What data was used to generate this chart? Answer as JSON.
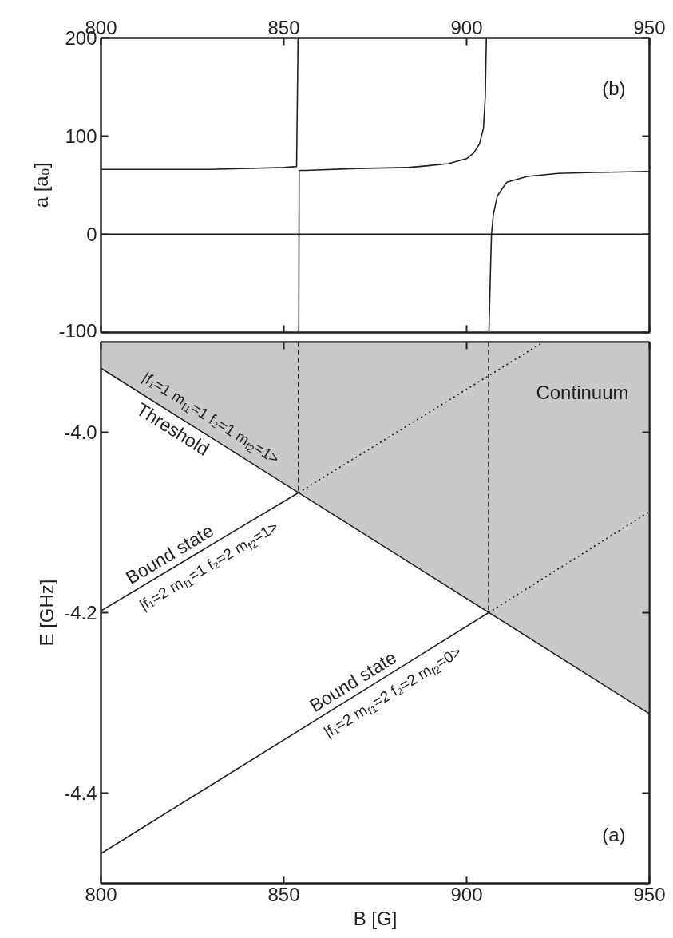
{
  "chart_data": [
    {
      "type": "line",
      "ylabel": "a [a₀]",
      "xlim": [
        800,
        950
      ],
      "xticks": [
        800,
        850,
        900,
        950
      ],
      "ylim": [
        -100,
        200
      ],
      "yticks": [
        -100,
        0,
        100,
        200
      ],
      "series": [
        {
          "color": "#231f20",
          "x": [
            800,
            830,
            850,
            853.5,
            853.9,
            854.0,
            854.1,
            854.2,
            856,
            870,
            884,
            890,
            895,
            900,
            902,
            903.5,
            904.6,
            905.1,
            905.4,
            905.7,
            906.1,
            906.5,
            906.8,
            907.3,
            908.4,
            910,
            911,
            916.6,
            925,
            935,
            950
          ],
          "values": [
            66,
            66,
            68,
            69,
            200,
            null,
            -100,
            65,
            65,
            67,
            68,
            70,
            72,
            77,
            83,
            92,
            108,
            140,
            200,
            null,
            -100,
            -40,
            0,
            20,
            39,
            48,
            53,
            59,
            62,
            63,
            64
          ]
        }
      ],
      "ref_lines": [
        {
          "axis": "y",
          "value": 0,
          "color": "#231f20"
        }
      ],
      "annotations": [
        "(b)"
      ]
    },
    {
      "type": "line",
      "xlabel": "B [G]",
      "ylabel": "E [GHz]",
      "xlim": [
        800,
        950
      ],
      "xticks": [
        800,
        850,
        900,
        950
      ],
      "ylim": [
        -4.5,
        -3.9
      ],
      "yticks": [
        -4.4,
        -4.2,
        {
          "value": -4.0,
          "label": "-4.0"
        }
      ],
      "series": [
        {
          "type": "area",
          "color": "#231f20",
          "x": [
            800,
            950
          ],
          "values": [
            -3.929,
            -4.312
          ]
        },
        {
          "color": "#231f20",
          "x": [
            800,
            854
          ],
          "values": [
            -4.198,
            -4.067
          ]
        },
        {
          "color": "#231f20",
          "x": [
            854,
            921
          ],
          "values": [
            -4.067,
            -3.9
          ],
          "line_style": "dotted"
        },
        {
          "color": "#231f20",
          "x": [
            800,
            906
          ],
          "values": [
            -4.467,
            -4.2
          ]
        },
        {
          "color": "#231f20",
          "x": [
            906,
            950
          ],
          "values": [
            -4.2,
            -4.088
          ],
          "line_style": "dotted"
        },
        {
          "color": "#231f20",
          "x": [
            854,
            854
          ],
          "values": [
            -3.9,
            -4.067
          ],
          "line_style": "dashed"
        },
        {
          "color": "#231f20",
          "x": [
            906,
            906
          ],
          "values": [
            -3.9,
            -4.2
          ],
          "line_style": "dashed"
        }
      ],
      "annotations": [
        "Continuum",
        "(a)",
        {
          "text": "|f₁=1 m$_{f1}$=1 f₂=1 m$_{f2}$=1>",
          "x": 827.6,
          "y": -4.0
        },
        {
          "text": "Threshold",
          "x": 821.6,
          "y": -3.984
        },
        {
          "text": "Bound state",
          "x": 820.5,
          "y": -4.148
        },
        {
          "text": "|f₁=2 m$_{f1}$=1 f₂=2 m$_{f2}$=1>",
          "x": 827.1,
          "y": -4.132
        },
        {
          "text": "Bound state",
          "x": 870.7,
          "y": -4.289
        },
        {
          "text": "|f₁=2 m$_{f1}$=2 f₂=2 m$_{f2}$=0>",
          "x": 877.3,
          "y": -4.272
        }
      ]
    }
  ]
}
